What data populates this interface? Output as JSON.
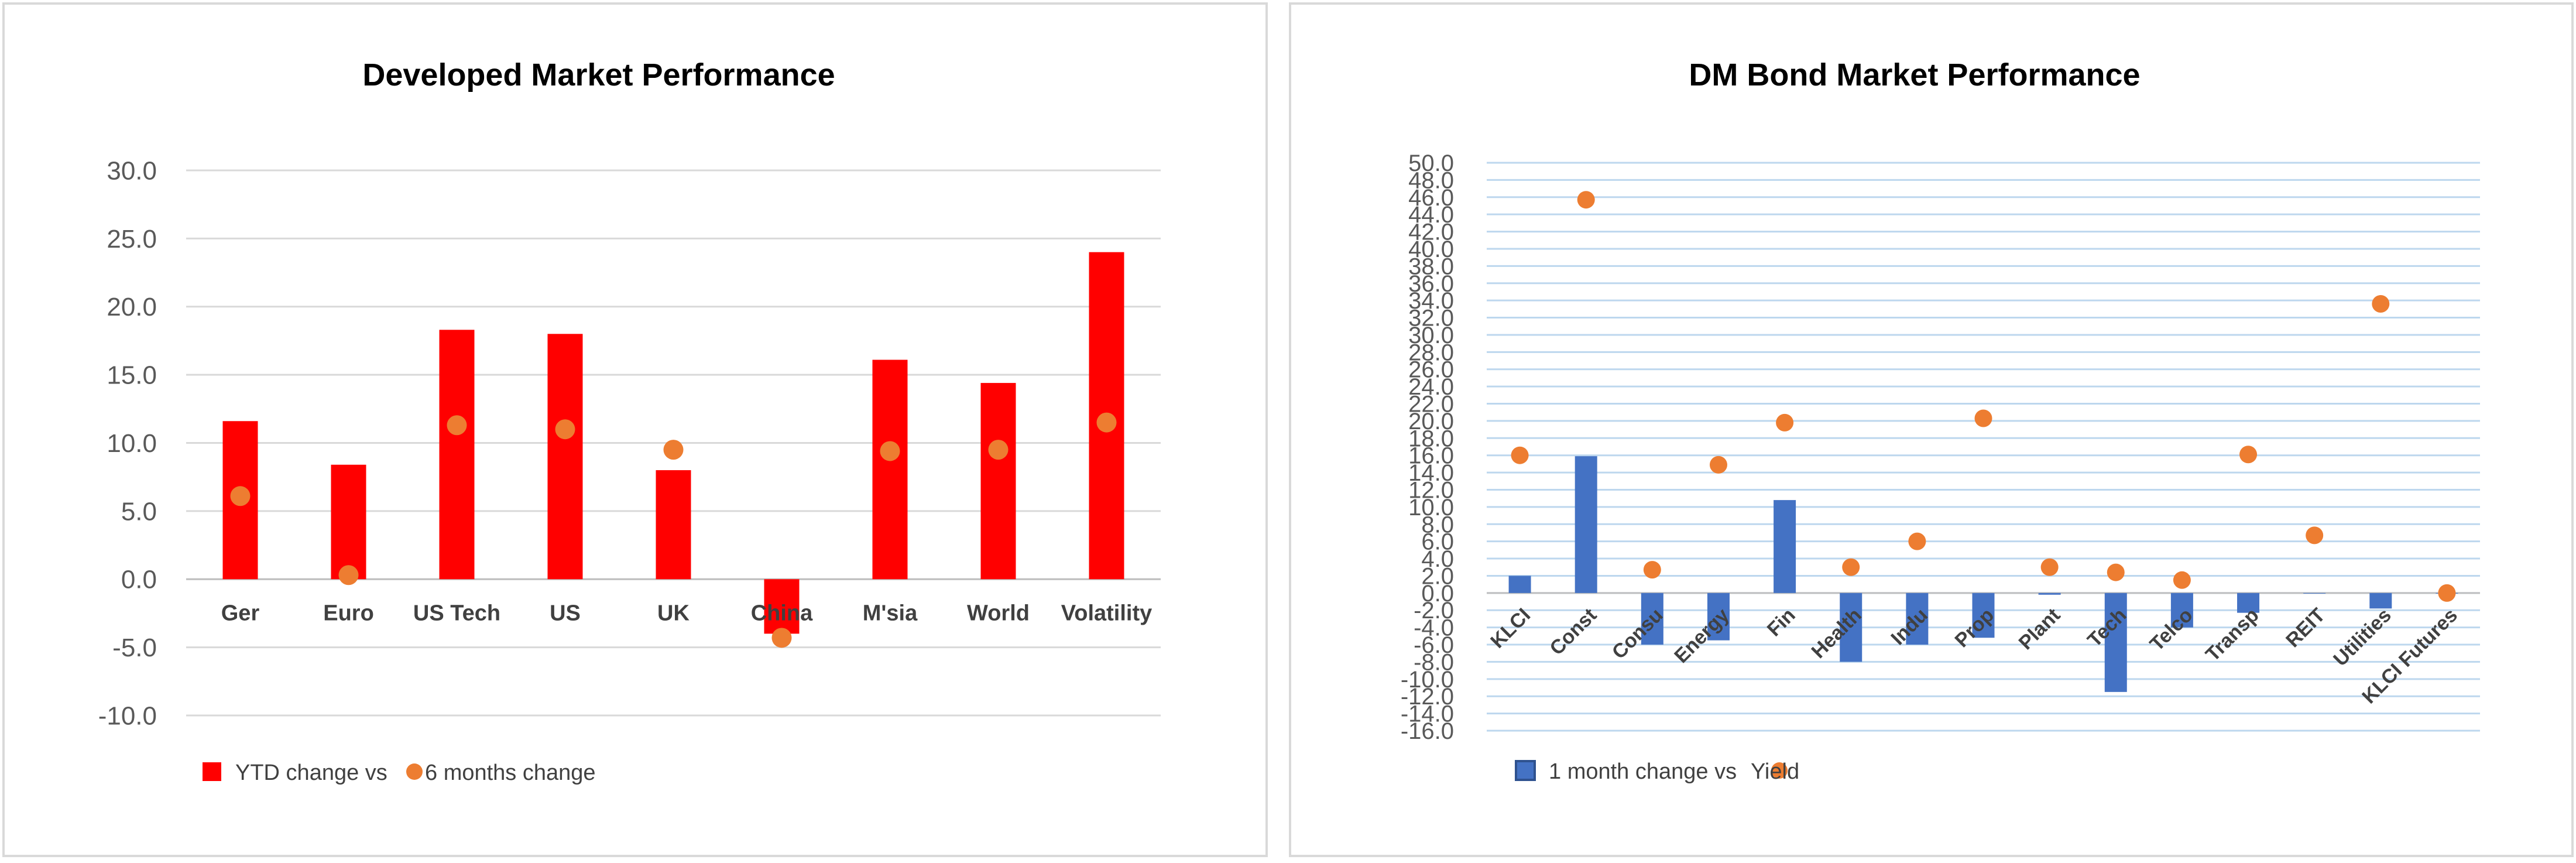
{
  "chart_data": [
    {
      "type": "bar",
      "title": "Developed Market Performance",
      "categories": [
        "Ger",
        "Euro",
        "US Tech",
        "US",
        "UK",
        "China",
        "M'sia",
        "World",
        "Volatility"
      ],
      "series": [
        {
          "name": "YTD change vs",
          "type": "bar",
          "color": "#ff0000",
          "values": [
            11.6,
            8.4,
            18.3,
            18.0,
            8.0,
            -4.0,
            16.1,
            14.4,
            24.0
          ]
        },
        {
          "name": "6 months change",
          "type": "scatter",
          "color": "#ed7d31",
          "values": [
            6.1,
            0.3,
            11.3,
            11.0,
            9.5,
            -4.3,
            9.4,
            9.5,
            11.5
          ]
        }
      ],
      "ylim": [
        -10,
        30
      ],
      "yticks": [
        "30.0",
        "25.0",
        "20.0",
        "15.0",
        "10.0",
        "5.0",
        "0.0",
        "-5.0",
        "-10.0"
      ],
      "grid": true,
      "legend": "bottom-left"
    },
    {
      "type": "bar",
      "title": "DM Bond Market Performance",
      "categories": [
        "KLCI",
        "Const",
        "Consu",
        "Energy",
        "Fin",
        "Health",
        "Indu",
        "Prop",
        "Plant",
        "Tech",
        "Telco",
        "Transp",
        "REIT",
        "Utilities",
        "KLCI Futures"
      ],
      "series": [
        {
          "name": "1 month change vs",
          "type": "bar",
          "color": "#4472c4",
          "values": [
            2.0,
            15.9,
            -6.0,
            -5.5,
            10.8,
            -8.0,
            -6.0,
            -5.2,
            -0.2,
            -11.5,
            -4.0,
            -2.3,
            0.0,
            -1.8,
            0.0
          ]
        },
        {
          "name": "Yield",
          "type": "scatter",
          "color": "#ed7d31",
          "values": [
            16.0,
            45.7,
            2.7,
            14.9,
            19.8,
            3.0,
            6.0,
            20.3,
            3.0,
            2.4,
            1.5,
            16.1,
            6.7,
            33.6,
            0.0
          ]
        }
      ],
      "ylim": [
        -16,
        50
      ],
      "yticks": [
        "50.0",
        "48.0",
        "46.0",
        "44.0",
        "42.0",
        "40.0",
        "38.0",
        "36.0",
        "34.0",
        "32.0",
        "30.0",
        "28.0",
        "26.0",
        "24.0",
        "22.0",
        "20.0",
        "18.0",
        "16.0",
        "14.0",
        "12.0",
        "10.0",
        "8.0",
        "6.0",
        "4.0",
        "2.0",
        "0.0",
        "-2.0",
        "-4.0",
        "-6.0",
        "-8.0",
        "-10.0",
        "-12.0",
        "-14.0",
        "-16.0"
      ],
      "grid": true,
      "legend": "bottom-left"
    }
  ]
}
